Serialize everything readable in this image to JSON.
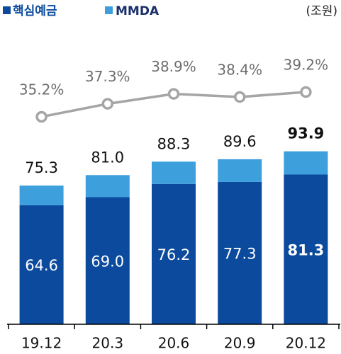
{
  "chart_data": {
    "type": "bar",
    "unit_label": "(조원)",
    "categories": [
      "19.12",
      "20.3",
      "20.6",
      "20.9",
      "20.12"
    ],
    "series": [
      {
        "name": "핵심예금",
        "color": "#0b4a9d",
        "values": [
          64.6,
          69.0,
          76.2,
          77.3,
          81.3
        ],
        "value_labels": [
          "64.6",
          "69.0",
          "76.2",
          "77.3",
          "81.3"
        ]
      },
      {
        "name": "MMDA",
        "color": "#3d9fdc",
        "values": [
          10.7,
          12.0,
          12.1,
          12.3,
          12.6
        ]
      },
      {
        "name": null,
        "type": "line",
        "axis": "y2",
        "color": "#a5a5a5",
        "values": [
          35.2,
          37.3,
          38.9,
          38.4,
          39.2
        ],
        "value_labels": [
          "35.2%",
          "37.3%",
          "38.9%",
          "38.4%",
          "39.2%"
        ]
      }
    ],
    "totals": [
      "75.3",
      "81.0",
      "88.3",
      "89.6",
      "93.9"
    ],
    "ylim": [
      0,
      153
    ],
    "y2lim": [
      1.7,
      47.2
    ]
  }
}
